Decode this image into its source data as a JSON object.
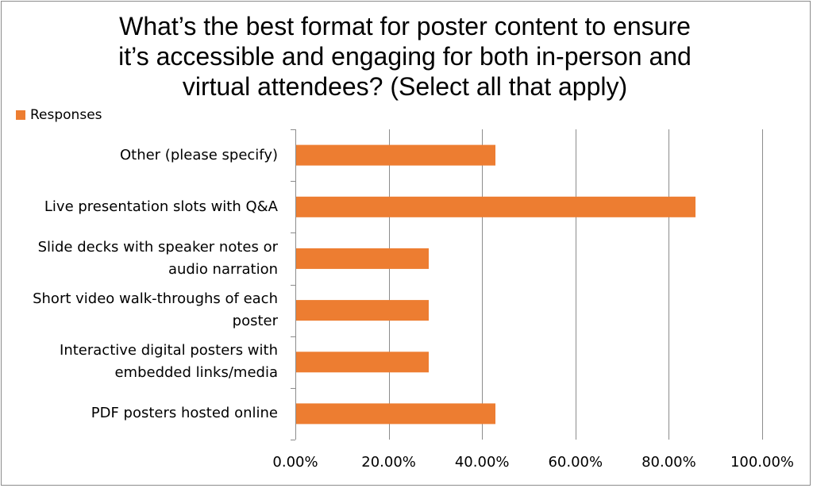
{
  "chart_data": {
    "type": "bar",
    "orientation": "horizontal",
    "title": "What’s the best format for poster content to ensure it’s accessible and engaging for both in-person and virtual attendees? (Select all that apply)",
    "title_lines": [
      "What’s the best format for poster content to ensure",
      "it’s accessible and engaging for both in-person and",
      "virtual attendees? (Select all that apply)"
    ],
    "legend": {
      "position": "top-left",
      "label": "Responses"
    },
    "series": [
      {
        "name": "Responses",
        "color": "#ED7D31",
        "values": [
          42.86,
          85.71,
          28.57,
          28.57,
          28.57,
          42.86
        ]
      }
    ],
    "categories": [
      [
        "Other (please specify)"
      ],
      [
        "Live presentation slots with Q&A"
      ],
      [
        "Slide decks with speaker notes or",
        "audio narration"
      ],
      [
        "Short video walk-throughs of each",
        "poster"
      ],
      [
        "Interactive digital posters with",
        "embedded links/media"
      ],
      [
        "PDF posters hosted online"
      ]
    ],
    "xlim": [
      0,
      100
    ],
    "xticks": [
      "0.00%",
      "20.00%",
      "40.00%",
      "60.00%",
      "80.00%",
      "100.00%"
    ],
    "grid": true
  }
}
